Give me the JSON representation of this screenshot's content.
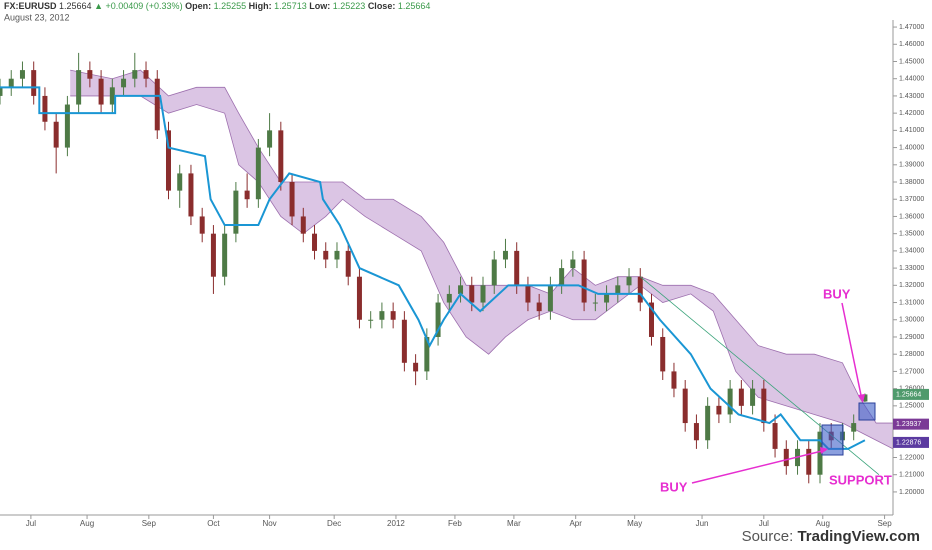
{
  "header": {
    "symbol": "FX:EURUSD",
    "change": "▲ +0.00409 (+0.33%)",
    "open_label": "Open:",
    "high_label": "High:",
    "low_label": "Low:",
    "close_label": "Close:",
    "date": "August 23, 2012"
  },
  "annotations": {
    "buy_low": "BUY",
    "buy_high": "BUY",
    "support": "SUPPORT"
  },
  "footer": {
    "source_label": "Source:",
    "source": "TradingView.com"
  },
  "chart_data": {
    "type": "candlestick",
    "up_color": "#4e7a46",
    "down_color": "#8a2d2d",
    "x": [
      0,
      4,
      8,
      12,
      16,
      20,
      24,
      28,
      32,
      36,
      40,
      44,
      48,
      52,
      56,
      60,
      64,
      68,
      72,
      76,
      80,
      84,
      88,
      92,
      96,
      100,
      104,
      108,
      112,
      116,
      120,
      124,
      128,
      132,
      136,
      140,
      144,
      148,
      152,
      156,
      160,
      164,
      168,
      172,
      176,
      180,
      184,
      188,
      192,
      196,
      200,
      204,
      208,
      212,
      216,
      220,
      224,
      228,
      232,
      236,
      240,
      244,
      248,
      252,
      256,
      260,
      264,
      268,
      272,
      276,
      280,
      284,
      288,
      292,
      296,
      300,
      304,
      308
    ],
    "open": [
      1.43,
      1.435,
      1.44,
      1.445,
      1.43,
      1.415,
      1.4,
      1.425,
      1.445,
      1.44,
      1.425,
      1.435,
      1.44,
      1.445,
      1.44,
      1.41,
      1.375,
      1.385,
      1.36,
      1.35,
      1.325,
      1.35,
      1.375,
      1.37,
      1.4,
      1.41,
      1.38,
      1.36,
      1.35,
      1.34,
      1.335,
      1.34,
      1.325,
      1.3,
      1.3,
      1.305,
      1.3,
      1.275,
      1.27,
      1.29,
      1.31,
      1.315,
      1.32,
      1.31,
      1.32,
      1.335,
      1.34,
      1.32,
      1.31,
      1.305,
      1.32,
      1.33,
      1.335,
      1.31,
      1.31,
      1.315,
      1.32,
      1.325,
      1.31,
      1.29,
      1.27,
      1.26,
      1.24,
      1.23,
      1.25,
      1.245,
      1.26,
      1.25,
      1.26,
      1.24,
      1.225,
      1.215,
      1.225,
      1.21,
      1.235,
      1.23,
      1.235,
      1.25255
    ],
    "high": [
      1.44,
      1.445,
      1.45,
      1.45,
      1.435,
      1.42,
      1.43,
      1.455,
      1.45,
      1.445,
      1.44,
      1.445,
      1.455,
      1.45,
      1.445,
      1.415,
      1.39,
      1.39,
      1.365,
      1.355,
      1.355,
      1.38,
      1.385,
      1.405,
      1.42,
      1.415,
      1.385,
      1.365,
      1.355,
      1.345,
      1.345,
      1.345,
      1.33,
      1.305,
      1.31,
      1.31,
      1.305,
      1.28,
      1.295,
      1.315,
      1.32,
      1.325,
      1.325,
      1.325,
      1.34,
      1.347,
      1.345,
      1.325,
      1.315,
      1.325,
      1.335,
      1.34,
      1.34,
      1.315,
      1.32,
      1.325,
      1.33,
      1.33,
      1.315,
      1.295,
      1.275,
      1.265,
      1.245,
      1.255,
      1.255,
      1.265,
      1.265,
      1.265,
      1.265,
      1.245,
      1.23,
      1.23,
      1.23,
      1.24,
      1.24,
      1.24,
      1.245,
      1.25713
    ],
    "low": [
      1.425,
      1.43,
      1.435,
      1.425,
      1.41,
      1.385,
      1.395,
      1.42,
      1.435,
      1.42,
      1.42,
      1.43,
      1.435,
      1.435,
      1.405,
      1.37,
      1.365,
      1.355,
      1.345,
      1.315,
      1.32,
      1.345,
      1.365,
      1.365,
      1.395,
      1.375,
      1.355,
      1.345,
      1.335,
      1.33,
      1.33,
      1.32,
      1.295,
      1.295,
      1.295,
      1.295,
      1.27,
      1.262,
      1.265,
      1.285,
      1.305,
      1.31,
      1.305,
      1.305,
      1.315,
      1.33,
      1.315,
      1.305,
      1.3,
      1.3,
      1.315,
      1.325,
      1.305,
      1.305,
      1.305,
      1.31,
      1.315,
      1.305,
      1.285,
      1.265,
      1.255,
      1.235,
      1.225,
      1.225,
      1.24,
      1.24,
      1.245,
      1.245,
      1.235,
      1.22,
      1.21,
      1.21,
      1.205,
      1.205,
      1.225,
      1.225,
      1.23,
      1.25223
    ],
    "close": [
      1.435,
      1.44,
      1.445,
      1.43,
      1.415,
      1.4,
      1.425,
      1.445,
      1.44,
      1.425,
      1.435,
      1.44,
      1.445,
      1.44,
      1.41,
      1.375,
      1.385,
      1.36,
      1.35,
      1.325,
      1.35,
      1.375,
      1.37,
      1.4,
      1.41,
      1.38,
      1.36,
      1.35,
      1.34,
      1.335,
      1.34,
      1.325,
      1.3,
      1.3,
      1.305,
      1.3,
      1.275,
      1.27,
      1.29,
      1.31,
      1.315,
      1.32,
      1.31,
      1.32,
      1.335,
      1.34,
      1.32,
      1.31,
      1.305,
      1.32,
      1.33,
      1.335,
      1.31,
      1.31,
      1.315,
      1.32,
      1.325,
      1.31,
      1.29,
      1.27,
      1.26,
      1.24,
      1.23,
      1.25,
      1.245,
      1.26,
      1.25,
      1.26,
      1.24,
      1.225,
      1.215,
      1.225,
      1.21,
      1.235,
      1.23,
      1.235,
      1.24,
      1.25664
    ],
    "kijun": {
      "color": "#1a96d4",
      "x": [
        0,
        14,
        14,
        41,
        41,
        57,
        60,
        73,
        75,
        80,
        92,
        96,
        103,
        114,
        115,
        121,
        128,
        135,
        142,
        149,
        153,
        158,
        164,
        171,
        181,
        206,
        213,
        228,
        235,
        246,
        253,
        263,
        274,
        278,
        285,
        292,
        295,
        302,
        308
      ],
      "values": [
        1.435,
        1.435,
        1.42,
        1.42,
        1.43,
        1.43,
        1.4,
        1.395,
        1.37,
        1.355,
        1.355,
        1.37,
        1.385,
        1.38,
        1.37,
        1.355,
        1.33,
        1.325,
        1.32,
        1.3,
        1.285,
        1.3,
        1.315,
        1.305,
        1.32,
        1.32,
        1.315,
        1.315,
        1.3,
        1.28,
        1.26,
        1.245,
        1.24,
        1.245,
        1.23,
        1.23,
        1.225,
        1.225,
        1.23
      ]
    },
    "cloud": {
      "color": "#c8a6d6",
      "stroke": "#9d6fae",
      "x": [
        25,
        40,
        50,
        60,
        70,
        80,
        85,
        92,
        100,
        108,
        116,
        122,
        130,
        140,
        150,
        158,
        166,
        174,
        180,
        188,
        196,
        204,
        212,
        220,
        228,
        236,
        246,
        254,
        262,
        270,
        280,
        290,
        300,
        306,
        312,
        318
      ],
      "upper": [
        1.445,
        1.44,
        1.445,
        1.43,
        1.435,
        1.435,
        1.42,
        1.4,
        1.38,
        1.38,
        1.38,
        1.38,
        1.37,
        1.37,
        1.36,
        1.345,
        1.32,
        1.32,
        1.32,
        1.32,
        1.315,
        1.33,
        1.32,
        1.325,
        1.325,
        1.32,
        1.32,
        1.315,
        1.3,
        1.285,
        1.28,
        1.28,
        1.275,
        1.255,
        1.24,
        1.24
      ],
      "lower": [
        1.43,
        1.43,
        1.43,
        1.42,
        1.425,
        1.42,
        1.39,
        1.38,
        1.36,
        1.35,
        1.36,
        1.37,
        1.36,
        1.35,
        1.34,
        1.31,
        1.29,
        1.28,
        1.29,
        1.3,
        1.305,
        1.3,
        1.3,
        1.31,
        1.32,
        1.31,
        1.315,
        1.305,
        1.27,
        1.255,
        1.25,
        1.245,
        1.24,
        1.235,
        1.23,
        1.225
      ]
    },
    "trendline": {
      "color": "#3aa37a",
      "x": [
        228,
        313
      ],
      "values": [
        1.325,
        1.21
      ]
    },
    "price_labels": [
      {
        "value": 1.25664,
        "label": "1.25664",
        "color": "#4f9a6c"
      },
      {
        "value": 1.23937,
        "label": "1.23937",
        "color": "#7b3a96"
      },
      {
        "value": 1.22876,
        "label": "1.22876",
        "color": "#5b3aa0"
      }
    ],
    "xlim": [
      0,
      318
    ],
    "ylim": [
      1.1866,
      1.4741
    ],
    "xticks": [
      {
        "value": 11,
        "label": "Jul"
      },
      {
        "value": 31,
        "label": "Aug"
      },
      {
        "value": 53,
        "label": "Sep"
      },
      {
        "value": 76,
        "label": "Oct"
      },
      {
        "value": 96,
        "label": "Nov"
      },
      {
        "value": 119,
        "label": "Dec"
      },
      {
        "value": 141,
        "label": "2012"
      },
      {
        "value": 162,
        "label": "Feb"
      },
      {
        "value": 183,
        "label": "Mar"
      },
      {
        "value": 205,
        "label": "Apr"
      },
      {
        "value": 226,
        "label": "May"
      },
      {
        "value": 250,
        "label": "Jun"
      },
      {
        "value": 272,
        "label": "Jul"
      },
      {
        "value": 293,
        "label": "Aug"
      },
      {
        "value": 315,
        "label": "Sep"
      }
    ],
    "yticks": [
      {
        "value": 1.2,
        "label": "1.20000"
      },
      {
        "value": 1.21,
        "label": "1.21000"
      },
      {
        "value": 1.22,
        "label": "1.22000"
      },
      {
        "value": 1.23,
        "label": "1.23000"
      },
      {
        "value": 1.24,
        "label": "1.24000"
      },
      {
        "value": 1.25,
        "label": "1.25000"
      },
      {
        "value": 1.26,
        "label": "1.26000"
      },
      {
        "value": 1.27,
        "label": "1.27000"
      },
      {
        "value": 1.28,
        "label": "1.28000"
      },
      {
        "value": 1.29,
        "label": "1.29000"
      },
      {
        "value": 1.3,
        "label": "1.30000"
      },
      {
        "value": 1.31,
        "label": "1.31000"
      },
      {
        "value": 1.32,
        "label": "1.32000"
      },
      {
        "value": 1.33,
        "label": "1.33000"
      },
      {
        "value": 1.34,
        "label": "1.34000"
      },
      {
        "value": 1.35,
        "label": "1.35000"
      },
      {
        "value": 1.36,
        "label": "1.36000"
      },
      {
        "value": 1.37,
        "label": "1.37000"
      },
      {
        "value": 1.38,
        "label": "1.38000"
      },
      {
        "value": 1.39,
        "label": "1.39000"
      },
      {
        "value": 1.4,
        "label": "1.40000"
      },
      {
        "value": 1.41,
        "label": "1.41000"
      },
      {
        "value": 1.42,
        "label": "1.42000"
      },
      {
        "value": 1.43,
        "label": "1.43000"
      },
      {
        "value": 1.44,
        "label": "1.44000"
      },
      {
        "value": 1.45,
        "label": "1.45000"
      },
      {
        "value": 1.46,
        "label": "1.46000"
      },
      {
        "value": 1.47,
        "label": "1.47000"
      }
    ],
    "grid": false
  }
}
